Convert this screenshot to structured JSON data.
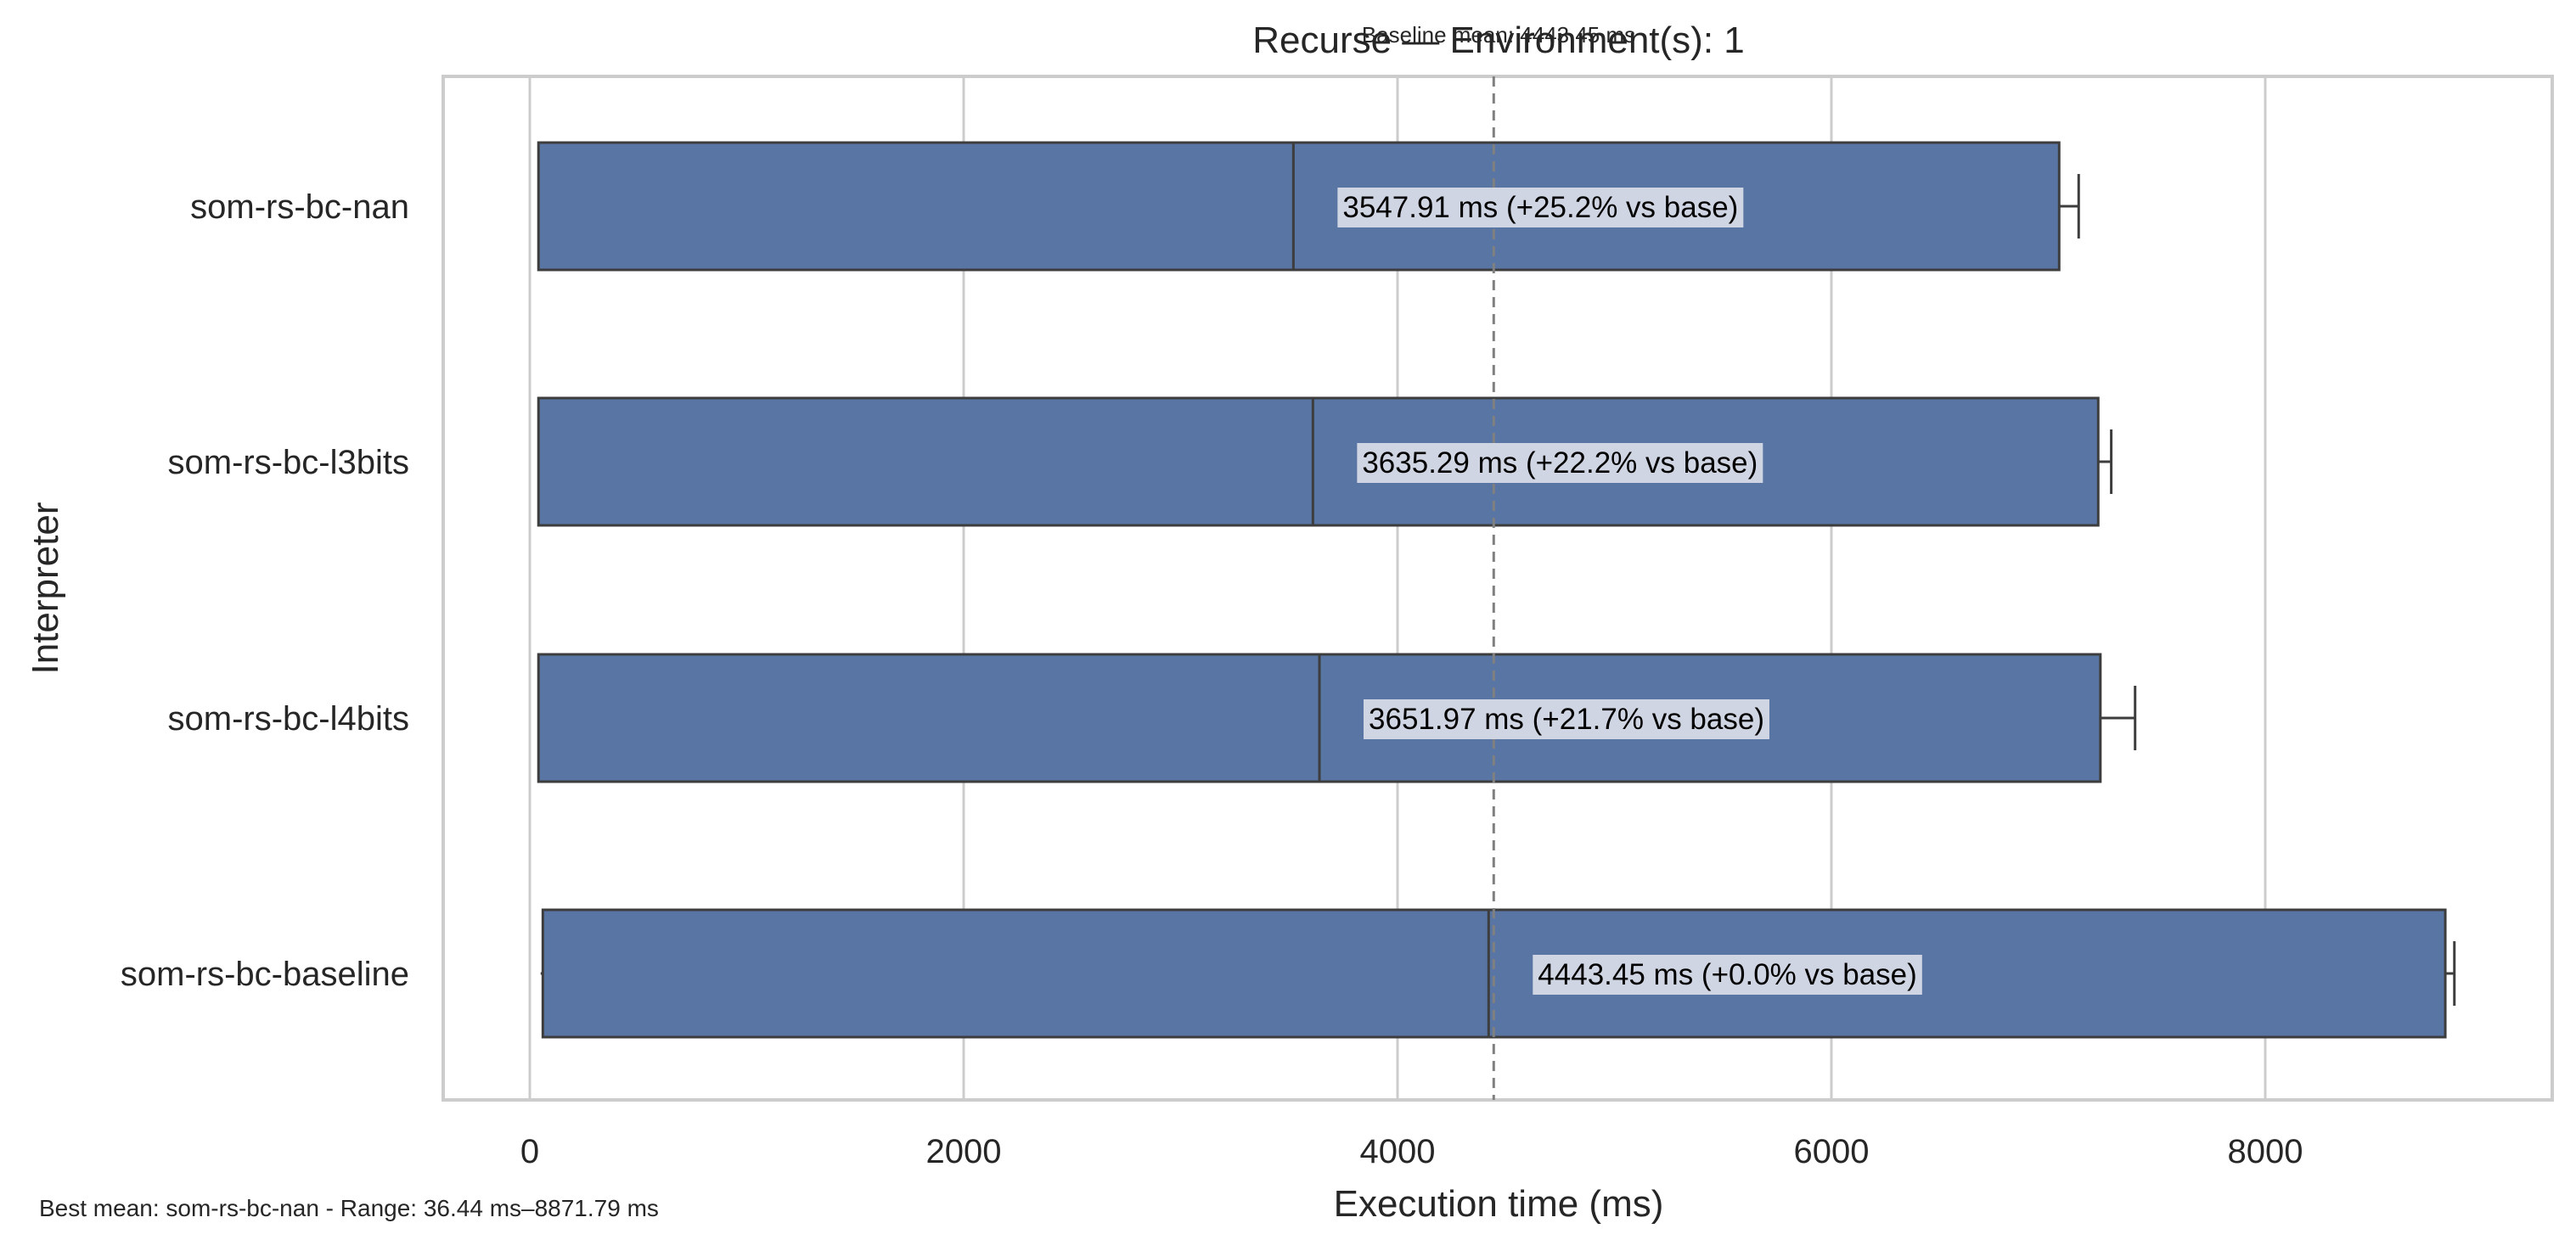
{
  "chart_data": {
    "type": "box",
    "orientation": "horizontal",
    "title": "Recurse — Environment(s): 1",
    "xlabel": "Execution time (ms)",
    "ylabel": "Interpreter",
    "xlim": [
      -400,
      9300
    ],
    "xticks": [
      0,
      2000,
      4000,
      6000,
      8000
    ],
    "grid": true,
    "categories": [
      "som-rs-bc-nan",
      "som-rs-bc-l3bits",
      "som-rs-bc-l4bits",
      "som-rs-bc-baseline"
    ],
    "series": [
      {
        "category": "som-rs-bc-nan",
        "min": 36.44,
        "q1": 40,
        "median": 3520,
        "q3": 7050,
        "max": 7140,
        "mean": 3547.91,
        "label": "3547.91 ms  (+25.2% vs base)"
      },
      {
        "category": "som-rs-bc-l3bits",
        "min": 40,
        "q1": 40,
        "median": 3610,
        "q3": 7230,
        "max": 7290,
        "mean": 3635.29,
        "label": "3635.29 ms  (+22.2% vs base)"
      },
      {
        "category": "som-rs-bc-l4bits",
        "min": 40,
        "q1": 40,
        "median": 3640,
        "q3": 7240,
        "max": 7400,
        "mean": 3651.97,
        "label": "3651.97 ms  (+21.7% vs base)"
      },
      {
        "category": "som-rs-bc-baseline",
        "min": 50,
        "q1": 60,
        "median": 4420,
        "q3": 8830,
        "max": 8871.79,
        "mean": 4443.45,
        "label": "4443.45 ms  (+0.0% vs base)"
      }
    ],
    "baseline": {
      "value": 4443.45,
      "label": "Baseline mean: 4443.45 ms"
    },
    "footnote": "Best mean: som-rs-bc-nan - Range: 36.44 ms–8871.79 ms",
    "colors": {
      "box_fill": "#5975a4",
      "box_edge": "#3d3d3d",
      "grid": "#cccccc",
      "frame": "#cccccc",
      "label_bg": "#d0d5e3",
      "baseline_line": "#808080",
      "text": "#262626"
    }
  }
}
